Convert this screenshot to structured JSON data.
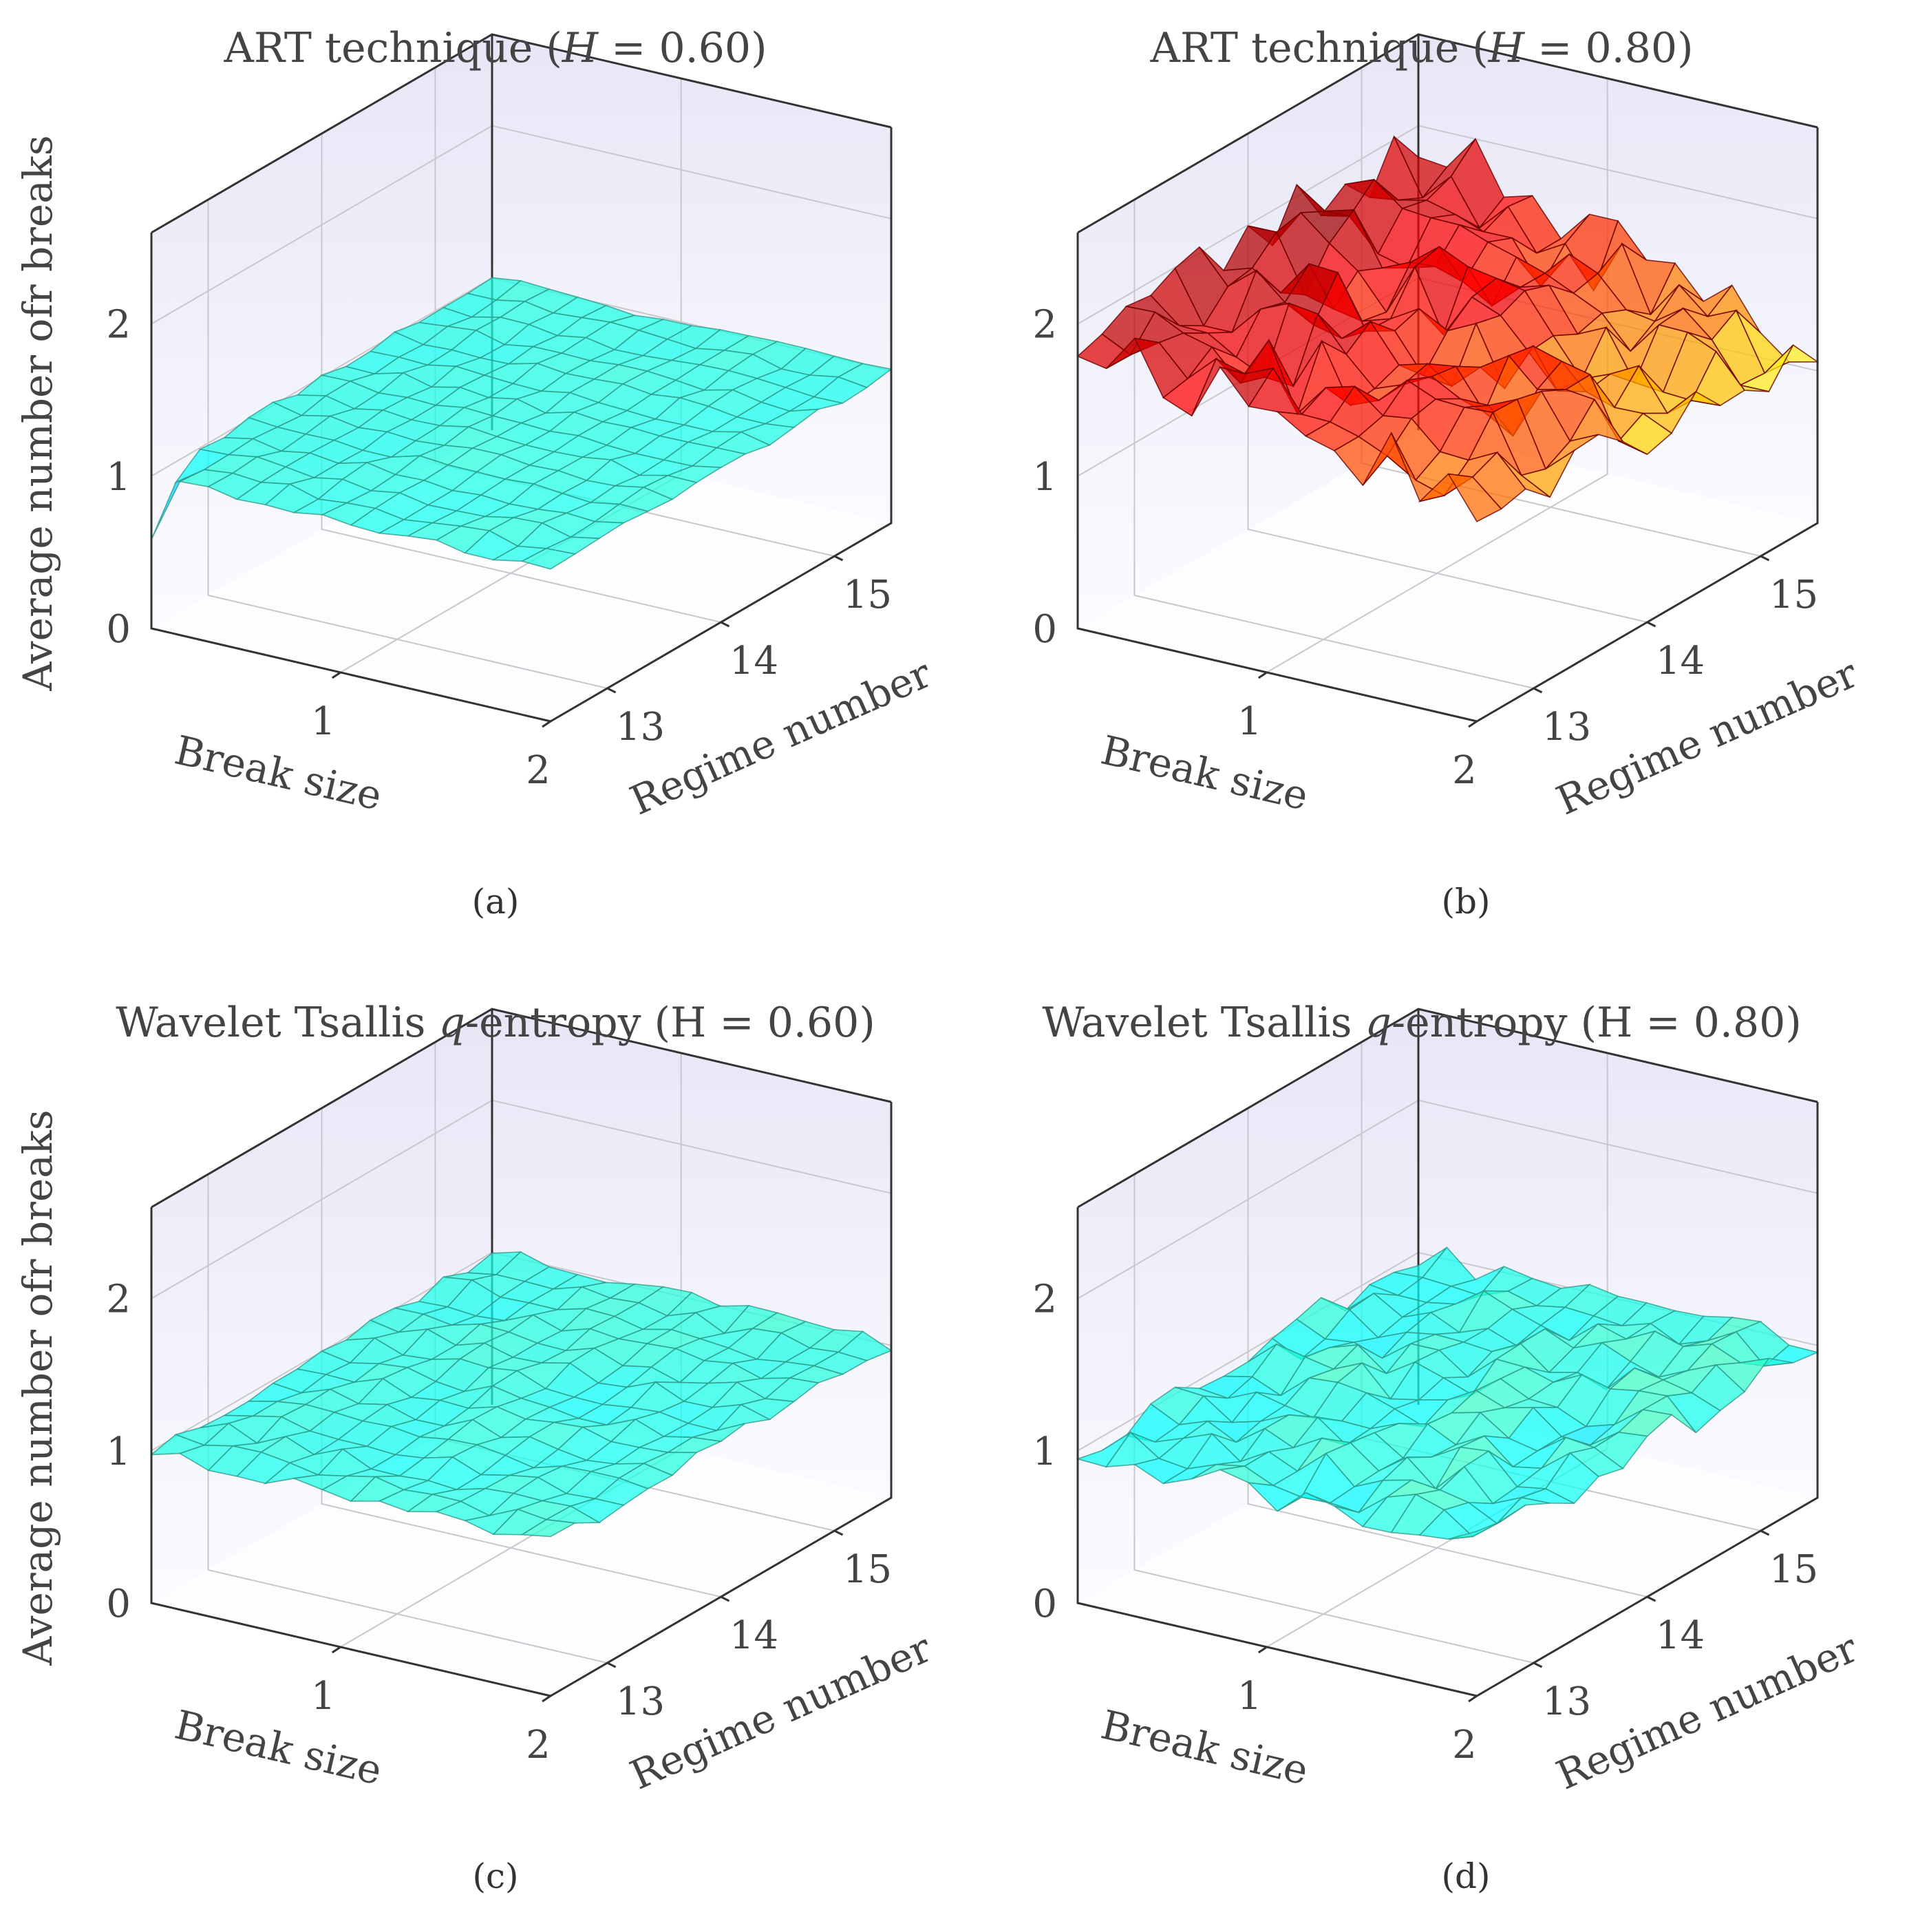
{
  "figure": {
    "captions": [
      "(a)",
      "(b)",
      "(c)",
      "(d)"
    ]
  },
  "chart_data": [
    {
      "type": "surface3d",
      "title": "ART technique (H = 0.60)",
      "title_prefix": "ART technique (",
      "title_var": "H",
      "title_value": " = 0.60)",
      "caption": "(a)",
      "xlabel": "Break size",
      "ylabel": "Regime number",
      "zlabel": "Average number ofr breaks",
      "xticks": [
        "1",
        "2"
      ],
      "yticks": [
        "13",
        "14",
        "15"
      ],
      "zticks": [
        "0",
        "1",
        "2"
      ],
      "xlim": [
        0.1,
        2
      ],
      "ylim": [
        12.5,
        15.5
      ],
      "zlim": [
        0,
        2.6
      ],
      "colormap": "jet",
      "grid_x_steps": 14,
      "grid_y_steps": 14,
      "z_base": 1.0,
      "z_noise": 0.03,
      "z_corner_dip": 0.4,
      "seed": 11
    },
    {
      "type": "surface3d",
      "title": "ART technique (H = 0.80)",
      "title_prefix": "ART technique (",
      "title_var": "H",
      "title_value": " = 0.80)",
      "caption": "(b)",
      "xlabel": "Break size",
      "ylabel": "Regime number",
      "zlabel": "",
      "xticks": [
        "1",
        "2"
      ],
      "yticks": [
        "13",
        "14",
        "15"
      ],
      "zticks": [
        "0",
        "1",
        "2"
      ],
      "xlim": [
        0.1,
        2
      ],
      "ylim": [
        12.5,
        15.5
      ],
      "zlim": [
        0,
        2.6
      ],
      "colormap": "hot",
      "grid_x_steps": 14,
      "grid_y_steps": 14,
      "z_base": 1.9,
      "z_slope_x": -0.75,
      "z_noise": 0.22,
      "seed": 23
    },
    {
      "type": "surface3d",
      "title": "Wavelet Tsallis q-entropy (H = 0.60)",
      "title_prefix": "Wavelet Tsallis ",
      "title_var": "q",
      "title_value": "-entropy (H = 0.60)",
      "caption": "(c)",
      "xlabel": "Break size",
      "ylabel": "Regime number",
      "zlabel": "Average number ofr breaks",
      "xticks": [
        "1",
        "2"
      ],
      "yticks": [
        "13",
        "14",
        "15"
      ],
      "zticks": [
        "0",
        "1",
        "2"
      ],
      "xlim": [
        0.1,
        2
      ],
      "ylim": [
        12.5,
        15.5
      ],
      "zlim": [
        0,
        2.6
      ],
      "colormap": "jet",
      "grid_x_steps": 14,
      "grid_y_steps": 14,
      "z_base": 1.0,
      "z_noise": 0.05,
      "seed": 37
    },
    {
      "type": "surface3d",
      "title": "Wavelet Tsallis q-entropy (H = 0.80)",
      "title_prefix": "Wavelet Tsallis ",
      "title_var": "q",
      "title_value": "-entropy (H = 0.80)",
      "caption": "(d)",
      "xlabel": "Break size",
      "ylabel": "Regime number",
      "zlabel": "",
      "xticks": [
        "1",
        "2"
      ],
      "yticks": [
        "13",
        "14",
        "15"
      ],
      "zticks": [
        "0",
        "1",
        "2"
      ],
      "xlim": [
        0.1,
        2
      ],
      "ylim": [
        12.5,
        15.5
      ],
      "zlim": [
        0,
        2.6
      ],
      "colormap": "jet",
      "grid_x_steps": 14,
      "grid_y_steps": 14,
      "z_base": 1.0,
      "z_noise": 0.11,
      "seed": 53
    }
  ],
  "colors": {
    "edge": "#333333",
    "grid": "#c8c8cc",
    "pane_top": "#e8e8f6",
    "pane_bottom": "#fafaff",
    "text": "#444444"
  }
}
